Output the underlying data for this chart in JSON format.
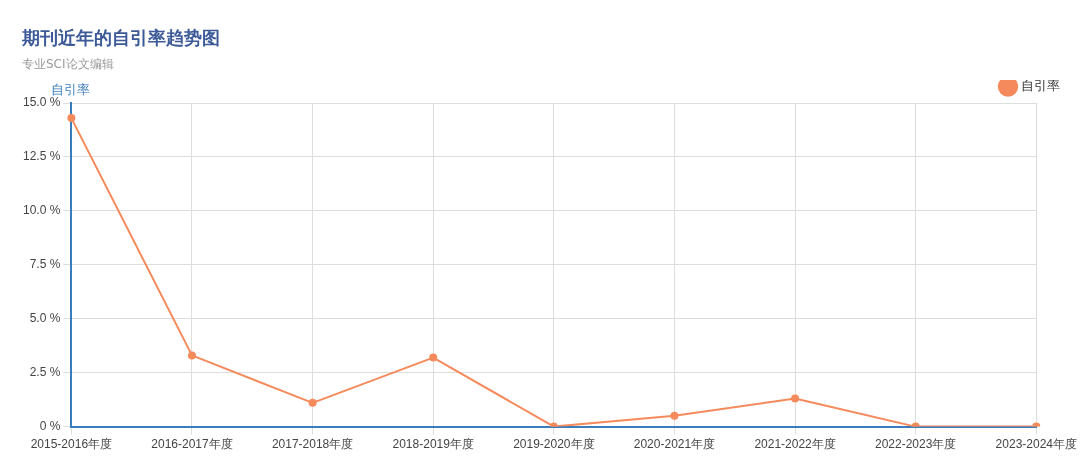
{
  "chart_data": {
    "type": "line",
    "title": "期刊近年的自引率趋势图",
    "subtitle": "专业SCI论文编辑",
    "ylabel": "自引率",
    "categories": [
      "2015-2016年度",
      "2016-2017年度",
      "2017-2018年度",
      "2018-2019年度",
      "2019-2020年度",
      "2020-2021年度",
      "2021-2022年度",
      "2022-2023年度",
      "2023-2024年度"
    ],
    "series": [
      {
        "name": "自引率",
        "color": "#f58b5c",
        "values": [
          14.3,
          3.3,
          1.1,
          3.2,
          0,
          0.5,
          1.3,
          0,
          0
        ]
      }
    ],
    "ylim": [
      0,
      15
    ],
    "yticks": [
      {
        "value": 0,
        "label": "0 %"
      },
      {
        "value": 2.5,
        "label": "2.5 %"
      },
      {
        "value": 5,
        "label": "5.0 %"
      },
      {
        "value": 7.5,
        "label": "7.5 %"
      },
      {
        "value": 10,
        "label": "10.0 %"
      },
      {
        "value": 12.5,
        "label": "12.5 %"
      },
      {
        "value": 15,
        "label": "15.0 %"
      }
    ],
    "grid": true,
    "legend": "top right",
    "marker": "circle",
    "line_style": "solid"
  }
}
